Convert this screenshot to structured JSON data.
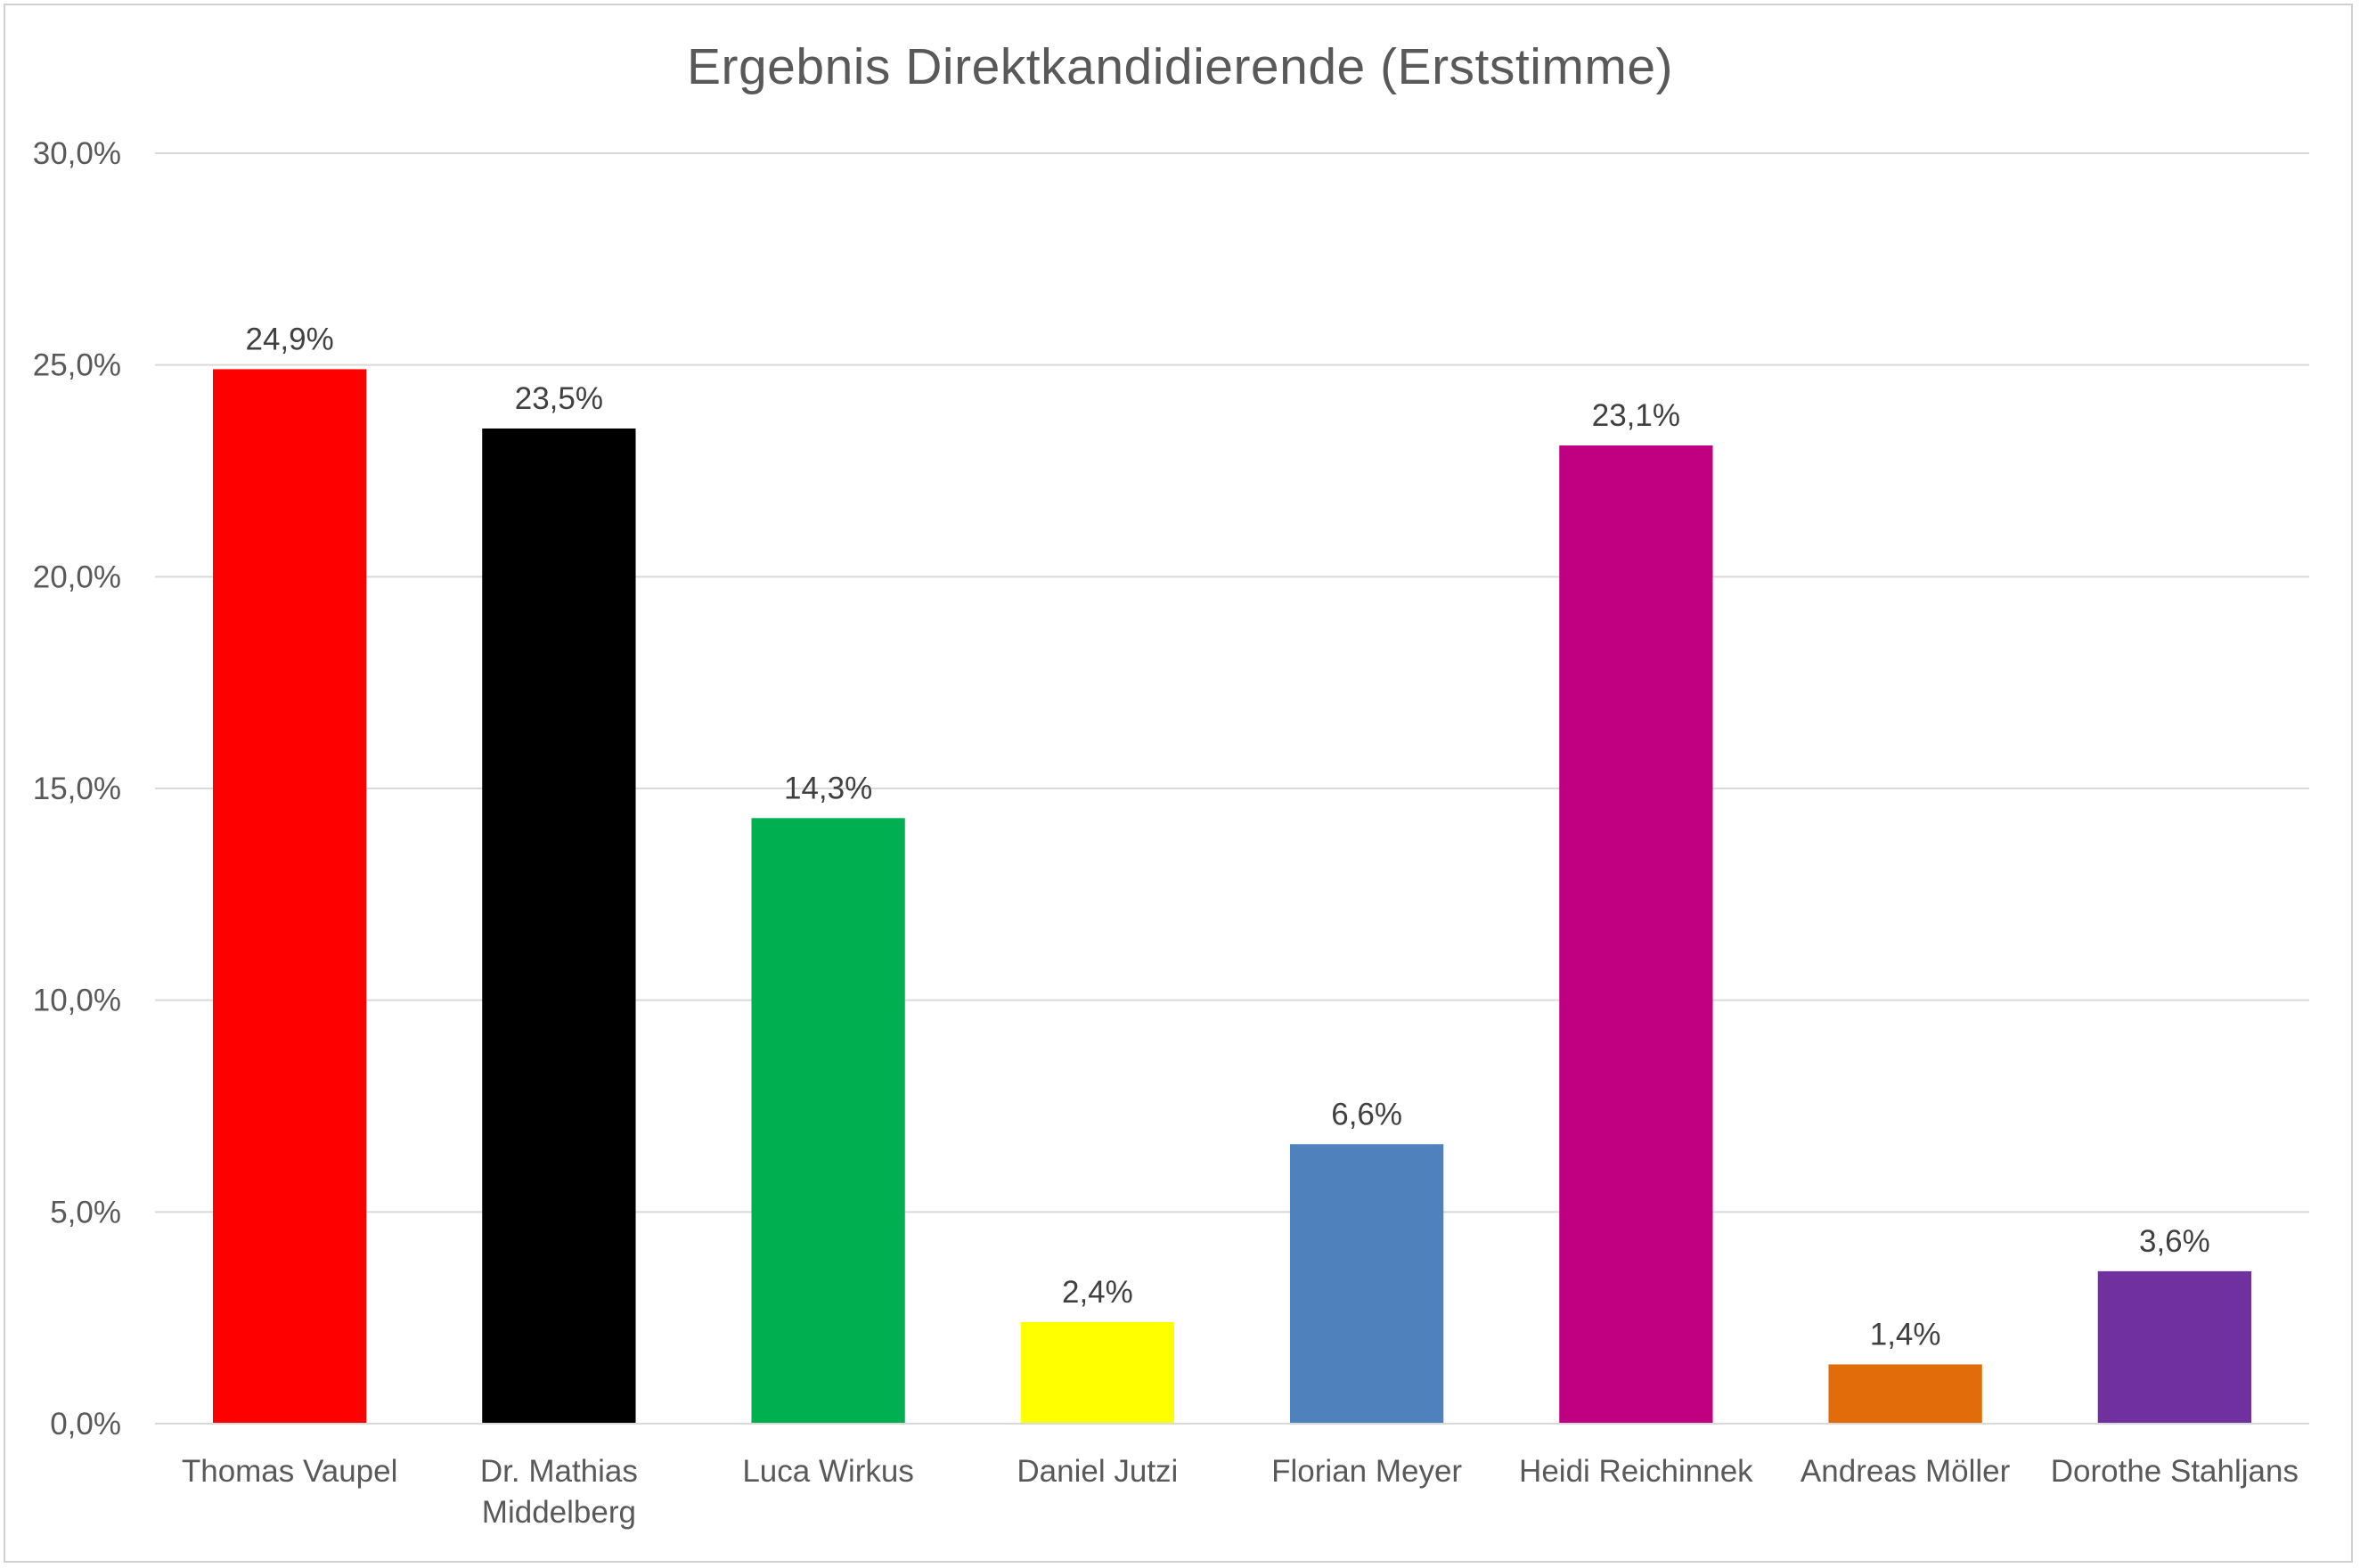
{
  "chart_data": {
    "type": "bar",
    "title": "Ergebnis Direktkandidierende (Erststimme)",
    "xlabel": "",
    "ylabel": "",
    "ylim": [
      0,
      30
    ],
    "yticks": [
      0,
      5,
      10,
      15,
      20,
      25,
      30
    ],
    "ytick_labels": [
      "0,0%",
      "5,0%",
      "10,0%",
      "15,0%",
      "20,0%",
      "25,0%",
      "30,0%"
    ],
    "grid": true,
    "legend": "none",
    "categories": [
      [
        "Thomas Vaupel"
      ],
      [
        "Dr. Mathias",
        "Middelberg"
      ],
      [
        "Luca Wirkus"
      ],
      [
        "Daniel Jutzi"
      ],
      [
        "Florian Meyer"
      ],
      [
        "Heidi Reichinnek"
      ],
      [
        "Andreas Möller"
      ],
      [
        "Dorothe Stahljans"
      ]
    ],
    "values": [
      24.9,
      23.5,
      14.3,
      2.4,
      6.6,
      23.1,
      1.4,
      3.6
    ],
    "value_labels": [
      "24,9%",
      "23,5%",
      "14,3%",
      "2,4%",
      "6,6%",
      "23,1%",
      "1,4%",
      "3,6%"
    ],
    "colors": [
      "#ff0000",
      "#000000",
      "#00b050",
      "#ffff00",
      "#4f81bd",
      "#c00080",
      "#e36c0a",
      "#7030a0"
    ]
  }
}
